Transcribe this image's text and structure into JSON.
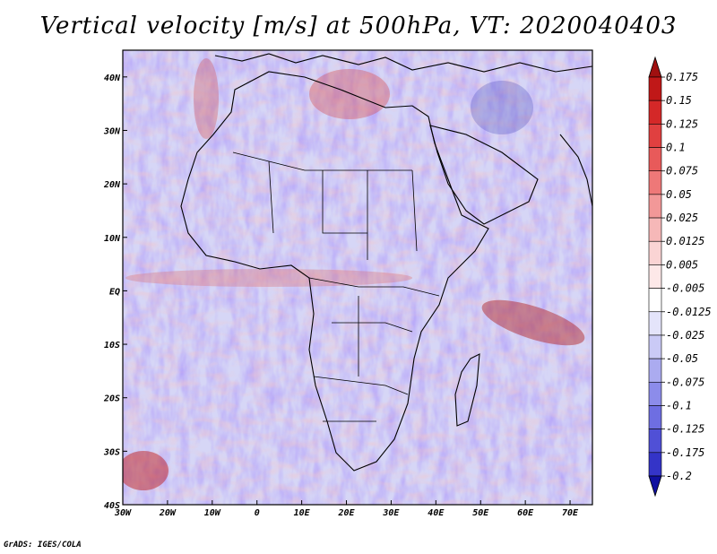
{
  "title": "Vertical velocity [m/s] at 500hPa, VT: 2020040403",
  "credit": "GrADS: IGES/COLA",
  "map": {
    "lon_range": [
      -30,
      75
    ],
    "lat_range": [
      -40,
      45
    ],
    "lon_ticks": [
      {
        "value": -30,
        "label": "30W"
      },
      {
        "value": -20,
        "label": "20W"
      },
      {
        "value": -10,
        "label": "10W"
      },
      {
        "value": 0,
        "label": "0"
      },
      {
        "value": 10,
        "label": "10E"
      },
      {
        "value": 20,
        "label": "20E"
      },
      {
        "value": 30,
        "label": "30E"
      },
      {
        "value": 40,
        "label": "40E"
      },
      {
        "value": 50,
        "label": "50E"
      },
      {
        "value": 60,
        "label": "60E"
      },
      {
        "value": 70,
        "label": "70E"
      }
    ],
    "lat_ticks": [
      {
        "value": 40,
        "label": "40N"
      },
      {
        "value": 30,
        "label": "30N"
      },
      {
        "value": 20,
        "label": "20N"
      },
      {
        "value": 10,
        "label": "10N"
      },
      {
        "value": 0,
        "label": "EQ"
      },
      {
        "value": -10,
        "label": "10S"
      },
      {
        "value": -20,
        "label": "20S"
      },
      {
        "value": -30,
        "label": "30S"
      },
      {
        "value": -40,
        "label": "40S"
      }
    ],
    "field": "Vertical velocity",
    "units": "m/s",
    "level": "500hPa",
    "valid_time": "2020040403"
  },
  "colorbar": {
    "levels": [
      {
        "label": "0.175",
        "color": "#c01818"
      },
      {
        "label": "0.15",
        "color": "#d42828"
      },
      {
        "label": "0.125",
        "color": "#e04040"
      },
      {
        "label": "0.1",
        "color": "#e85a5a"
      },
      {
        "label": "0.075",
        "color": "#ee7878"
      },
      {
        "label": "0.05",
        "color": "#f29898"
      },
      {
        "label": "0.025",
        "color": "#f6b8b8"
      },
      {
        "label": "0.0125",
        "color": "#fad4d4"
      },
      {
        "label": "0.005",
        "color": "#fde8e8"
      },
      {
        "label": "-0.005",
        "color": "#ffffff"
      },
      {
        "label": "-0.0125",
        "color": "#e4e4fa"
      },
      {
        "label": "-0.025",
        "color": "#cacaf6"
      },
      {
        "label": "-0.05",
        "color": "#ababf0"
      },
      {
        "label": "-0.075",
        "color": "#8c8cea"
      },
      {
        "label": "-0.1",
        "color": "#6e6ee2"
      },
      {
        "label": "-0.125",
        "color": "#5050d6"
      },
      {
        "label": "-0.175",
        "color": "#3434c8"
      },
      {
        "label": "-0.2",
        "color": "#2020b6"
      }
    ],
    "top_arrow_color": "#a01010",
    "bottom_arrow_color": "#1010a0"
  }
}
